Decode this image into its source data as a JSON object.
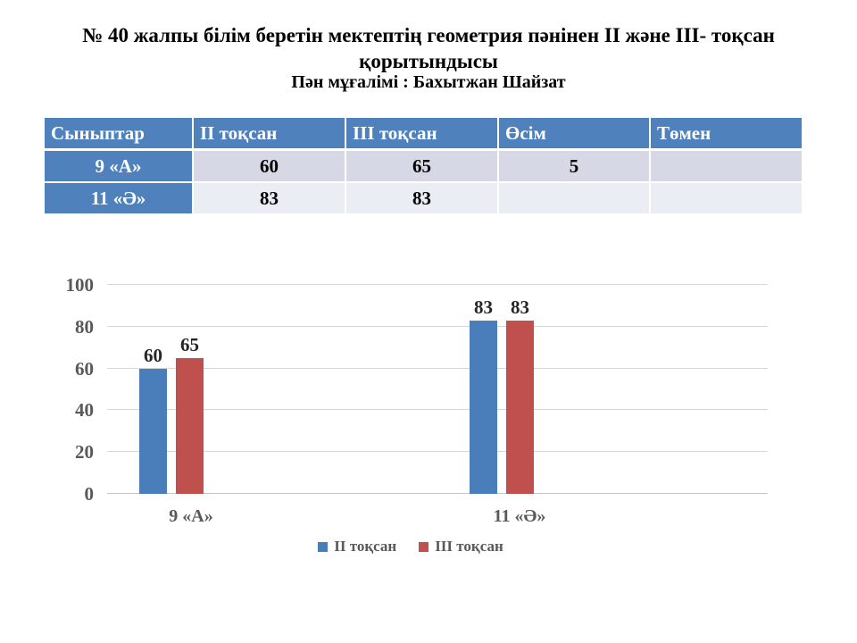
{
  "slide": {
    "title_line1": "№ 40 жалпы білім беретін мектептің геометрия пәнінен II және III- тоқсан",
    "title_line2": "қорытындысы",
    "subtitle": "Пән мұғалімі : Бахытжан Шайзат"
  },
  "table": {
    "headers": [
      "Сыныптар",
      "II тоқсан",
      "III тоқсан",
      "Өсім",
      "Төмен"
    ],
    "rows": [
      {
        "label": "9 «А»",
        "values": [
          "60",
          "65",
          "5",
          ""
        ]
      },
      {
        "label": "11 «Ә»",
        "values": [
          "83",
          "83",
          "",
          ""
        ]
      }
    ]
  },
  "chart_data": {
    "type": "bar",
    "categories": [
      "9 «А»",
      "11 «Ә»"
    ],
    "series": [
      {
        "name": "II тоқсан",
        "color": "#4a7ebb",
        "values": [
          60,
          83
        ]
      },
      {
        "name": "III тоқсан",
        "color": "#c0504d",
        "values": [
          65,
          83
        ]
      }
    ],
    "ylim": [
      0,
      100
    ],
    "yticks": [
      0,
      20,
      40,
      60,
      80,
      100
    ],
    "grid": true,
    "legend_position": "bottom",
    "data_labels": [
      [
        "60",
        "83"
      ],
      [
        "65",
        "83"
      ]
    ]
  },
  "colors": {
    "accent_blue": "#4f81bd",
    "row_odd_bg": "#d6d9e5",
    "row_even_bg": "#eaedf4",
    "gridline": "#d6d6d6",
    "axis_text": "#595959",
    "value_label": "#262626"
  }
}
